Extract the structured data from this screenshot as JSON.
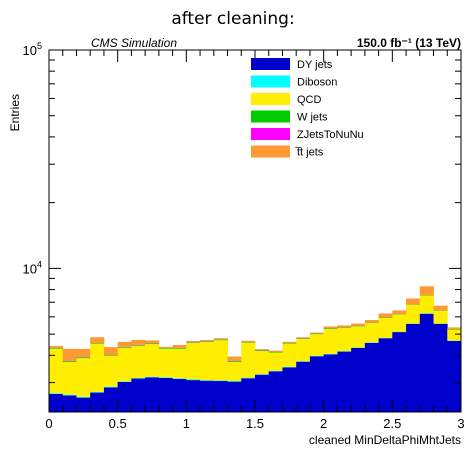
{
  "chart_data": {
    "type": "bar",
    "stacked": true,
    "title": "after cleaning:",
    "xlabel": "cleaned MinDeltaPhiMhtJets",
    "ylabel": "Entries",
    "cms_label": "CMS Simulation",
    "lumi_label": "150.0 fb⁻¹ (13 TeV)",
    "xlim": [
      0,
      3
    ],
    "ylim": [
      2200,
      100000
    ],
    "yscale": "log",
    "x_ticks": [
      "0",
      "0.5",
      "1",
      "1.5",
      "2",
      "2.5",
      "3"
    ],
    "y_ticks": [
      {
        "value": 10000,
        "base": "10",
        "exp": "4"
      },
      {
        "value": 100000,
        "base": "10",
        "exp": "5"
      }
    ],
    "bin_edges": [
      0,
      0.1,
      0.2,
      0.3,
      0.4,
      0.5,
      0.6,
      0.7,
      0.8,
      0.9,
      1.0,
      1.1,
      1.2,
      1.3,
      1.4,
      1.5,
      1.6,
      1.7,
      1.8,
      1.9,
      2.0,
      2.1,
      2.2,
      2.3,
      2.4,
      2.5,
      2.6,
      2.7,
      2.8,
      2.9,
      3.0
    ],
    "legend_position": "top-right",
    "series": [
      {
        "name": "DY jets",
        "color": "#0000cc",
        "values": [
          2660,
          2620,
          2560,
          2700,
          2850,
          3020,
          3130,
          3170,
          3150,
          3120,
          3080,
          3060,
          3050,
          3030,
          3140,
          3260,
          3380,
          3520,
          3740,
          3960,
          4040,
          4160,
          4320,
          4560,
          4790,
          5110,
          5570,
          6200,
          5570,
          4650
        ]
      },
      {
        "name": "Diboson",
        "color": "#00ffff",
        "values": [
          20,
          20,
          20,
          20,
          20,
          20,
          20,
          20,
          20,
          20,
          20,
          20,
          20,
          20,
          20,
          20,
          20,
          20,
          20,
          20,
          20,
          20,
          20,
          20,
          20,
          20,
          20,
          20,
          20,
          20
        ]
      },
      {
        "name": "QCD",
        "color": "#ffee00",
        "values": [
          1610,
          1090,
          1300,
          1810,
          1120,
          1290,
          1270,
          1320,
          1120,
          1150,
          1460,
          1530,
          1620,
          680,
          1420,
          910,
          720,
          990,
          1000,
          1020,
          1220,
          1160,
          1090,
          1050,
          1120,
          1030,
          1240,
          1300,
          820,
          580
        ]
      },
      {
        "name": "W jets",
        "color": "#00cc00",
        "values": [
          30,
          30,
          30,
          30,
          30,
          30,
          30,
          30,
          30,
          30,
          30,
          30,
          30,
          30,
          30,
          30,
          30,
          30,
          30,
          30,
          30,
          30,
          30,
          30,
          30,
          30,
          30,
          30,
          30,
          30
        ]
      },
      {
        "name": "ZJetsToNuNu",
        "color": "#ff00ff",
        "values": [
          10,
          10,
          10,
          10,
          10,
          10,
          10,
          10,
          10,
          10,
          10,
          10,
          10,
          10,
          10,
          10,
          10,
          10,
          10,
          10,
          10,
          10,
          10,
          10,
          10,
          10,
          10,
          10,
          10,
          10
        ]
      },
      {
        "name": "t̅t jets",
        "color": "#ff9933",
        "values": [
          80,
          510,
          360,
          270,
          330,
          240,
          240,
          130,
          40,
          130,
          50,
          50,
          60,
          180,
          40,
          40,
          40,
          40,
          40,
          40,
          100,
          100,
          120,
          130,
          250,
          220,
          410,
          720,
          300,
          80
        ]
      }
    ]
  }
}
